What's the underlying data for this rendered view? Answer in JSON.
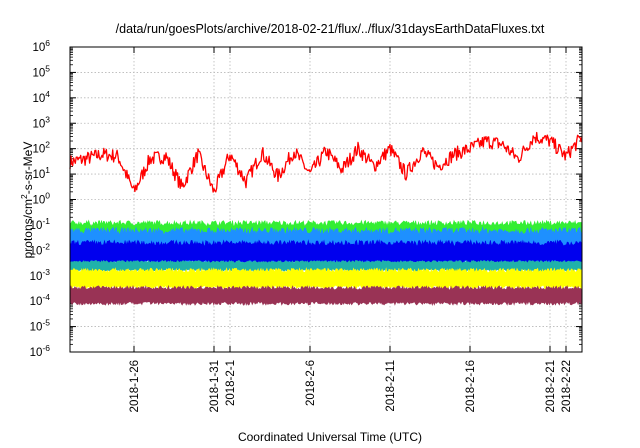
{
  "chart_data": {
    "type": "line",
    "title": "/data/run/goesPlots/archive/2018-02-21/flux/../flux/31daysEarthDataFluxes.txt",
    "xlabel": "Coordinated Universal Time (UTC)",
    "ylabel_parts": [
      "protons/cm",
      "2",
      "-s-sr-MeV"
    ],
    "ylabel": "protons/cm2-s-sr-MeV",
    "y_scale": "log",
    "ylim_exponents": [
      -6,
      6
    ],
    "y_tick_base": "10",
    "y_tick_exponents": [
      "-6",
      "-5",
      "-4",
      "-3",
      "-2",
      "-1",
      "0",
      "1",
      "2",
      "3",
      "4",
      "5",
      "6"
    ],
    "xlim": [
      "2018-01-22",
      "2018-02-23"
    ],
    "x_ticks": [
      {
        "date": "2018-01-26",
        "lines": [
          "2018-1-26"
        ]
      },
      {
        "date": "2018-01-31",
        "lines": [
          "2018-1-31"
        ]
      },
      {
        "date": "2018-02-01",
        "lines": [
          "2018-2-1"
        ]
      },
      {
        "date": "2018-02-06",
        "lines": [
          "2018-2-6"
        ]
      },
      {
        "date": "2018-02-11",
        "lines": [
          "2018-2-11"
        ]
      },
      {
        "date": "2018-02-16",
        "lines": [
          "2018-2-16"
        ]
      },
      {
        "date": "2018-02-21",
        "lines": [
          "2018-2-21"
        ]
      },
      {
        "date": "2018-02-22",
        "lines": [
          "2018-2-22"
        ]
      }
    ],
    "grid": true,
    "series": [
      {
        "color": "#ff0000",
        "x": [
          "2018-01-22",
          "2018-01-23",
          "2018-01-24",
          "2018-01-25",
          "2018-01-26",
          "2018-01-27",
          "2018-01-28",
          "2018-01-29",
          "2018-01-30",
          "2018-01-31",
          "2018-02-01",
          "2018-02-02",
          "2018-02-03",
          "2018-02-04",
          "2018-02-05",
          "2018-02-06",
          "2018-02-07",
          "2018-02-08",
          "2018-02-09",
          "2018-02-10",
          "2018-02-11",
          "2018-02-12",
          "2018-02-13",
          "2018-02-14",
          "2018-02-15",
          "2018-02-16",
          "2018-02-17",
          "2018-02-18",
          "2018-02-19",
          "2018-02-20",
          "2018-02-21",
          "2018-02-22",
          "2018-02-23"
        ],
        "values": [
          30,
          40,
          60,
          50,
          2,
          40,
          50,
          3,
          60,
          2,
          60,
          5,
          70,
          8,
          80,
          10,
          80,
          15,
          100,
          20,
          100,
          10,
          80,
          20,
          60,
          100,
          200,
          150,
          40,
          300,
          200,
          50,
          300
        ]
      },
      {
        "color": "#33ee33",
        "band": [
          0.01,
          0.15
        ],
        "typical": 0.05
      },
      {
        "color": "#1e90ff",
        "band": [
          0.002,
          0.08
        ],
        "typical": 0.02
      },
      {
        "color": "#0000ee",
        "band": [
          0.003,
          0.025
        ],
        "typical": 0.008
      },
      {
        "color": "#20b2aa",
        "band": [
          0.0015,
          0.004
        ],
        "typical": 0.0025
      },
      {
        "color": "#ffff00",
        "band": [
          0.0003,
          0.002
        ],
        "typical": 0.0008
      },
      {
        "color": "#993355",
        "band": [
          7e-05,
          0.0004
        ],
        "typical": 0.00018
      }
    ]
  }
}
